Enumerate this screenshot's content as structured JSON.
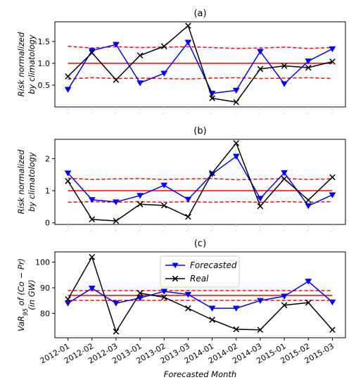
{
  "chart_data": [
    {
      "type": "line",
      "title": "(a)",
      "ylabel": "Risk normalized\nby climatology",
      "xlabel": "",
      "ylim": [
        0,
        1.95
      ],
      "yticks": [
        0.5,
        1.0,
        1.5
      ],
      "ytick_labels": [
        "0.5",
        "1.0",
        "1.5"
      ],
      "show_xtick_labels": false,
      "grid": false,
      "categories": [
        "2012-01",
        "2012-02",
        "2012-03",
        "2013-01",
        "2013-02",
        "2013-03",
        "2014-01",
        "2014-02",
        "2014-03",
        "2015-01",
        "2015-02",
        "2015-03"
      ],
      "series": [
        {
          "role": "forecasted",
          "color": "#0000ff",
          "marker": "triangle-down",
          "values": [
            0.4,
            1.29,
            1.43,
            0.55,
            0.77,
            1.48,
            0.31,
            0.38,
            1.27,
            0.53,
            1.05,
            1.33
          ]
        },
        {
          "role": "real",
          "color": "#000000",
          "marker": "x",
          "values": [
            0.7,
            1.24,
            0.62,
            1.18,
            1.39,
            1.86,
            0.2,
            0.11,
            0.87,
            0.94,
            0.9,
            1.04
          ]
        }
      ],
      "reference_lines": [
        {
          "style": "solid",
          "color": "#ff0000",
          "values": [
            1.0,
            1.0,
            1.0,
            1.0,
            1.0,
            1.0,
            1.0,
            1.0,
            1.0,
            1.0,
            1.0,
            1.0
          ]
        },
        {
          "style": "dashed",
          "color": "#ff0000",
          "values": [
            1.39,
            1.35,
            1.38,
            1.36,
            1.37,
            1.38,
            1.36,
            1.34,
            1.35,
            1.37,
            1.34,
            1.36
          ]
        },
        {
          "style": "dashed",
          "color": "#ff0000",
          "values": [
            0.64,
            0.67,
            0.65,
            0.66,
            0.65,
            0.64,
            0.66,
            0.67,
            0.65,
            0.66,
            0.67,
            0.65
          ]
        }
      ]
    },
    {
      "type": "line",
      "title": "(b)",
      "ylabel": "Risk normalized\nby climatology",
      "xlabel": "",
      "ylim": [
        -0.05,
        2.6
      ],
      "yticks": [
        0,
        1,
        2
      ],
      "ytick_labels": [
        "0",
        "1",
        "2"
      ],
      "show_xtick_labels": false,
      "grid": false,
      "categories": [
        "2012-01",
        "2012-02",
        "2012-03",
        "2013-01",
        "2013-02",
        "2013-03",
        "2014-01",
        "2014-02",
        "2014-03",
        "2015-01",
        "2015-02",
        "2015-03"
      ],
      "series": [
        {
          "role": "forecasted",
          "color": "#0000ff",
          "marker": "triangle-down",
          "values": [
            1.55,
            0.72,
            0.65,
            0.85,
            1.17,
            0.73,
            1.52,
            2.07,
            0.76,
            1.56,
            0.53,
            0.87
          ]
        },
        {
          "role": "real",
          "color": "#000000",
          "marker": "x",
          "values": [
            1.3,
            0.11,
            0.06,
            0.58,
            0.54,
            0.19,
            1.55,
            2.48,
            0.52,
            1.37,
            0.71,
            1.42
          ]
        }
      ],
      "reference_lines": [
        {
          "style": "solid",
          "color": "#ff0000",
          "values": [
            1.0,
            1.0,
            1.0,
            1.0,
            1.0,
            1.0,
            1.0,
            1.0,
            1.0,
            1.0,
            1.0,
            1.0
          ]
        },
        {
          "style": "dashed",
          "color": "#ff0000",
          "values": [
            1.39,
            1.35,
            1.37,
            1.38,
            1.35,
            1.37,
            1.38,
            1.34,
            1.36,
            1.38,
            1.35,
            1.37
          ]
        },
        {
          "style": "dashed",
          "color": "#ff0000",
          "values": [
            0.64,
            0.66,
            0.64,
            0.66,
            0.64,
            0.66,
            0.64,
            0.66,
            0.64,
            0.66,
            0.64,
            0.66
          ]
        }
      ]
    },
    {
      "type": "line",
      "title": "(c)",
      "ylabel_lines": [
        "VaR95 of (Co − Pr)",
        "(in GW)"
      ],
      "xlabel": "Forecasted Month",
      "ylim": [
        70.5,
        104
      ],
      "yticks": [
        80,
        90,
        100
      ],
      "ytick_labels": [
        "80",
        "90",
        "100"
      ],
      "show_xtick_labels": true,
      "grid": false,
      "legend": {
        "position": "top-center",
        "entries": [
          "Forecasted",
          "Real"
        ]
      },
      "categories": [
        "2012-01",
        "2012-02",
        "2012-03",
        "2013-01",
        "2013-02",
        "2013-03",
        "2014-01",
        "2014-02",
        "2014-03",
        "2015-01",
        "2015-02",
        "2015-03"
      ],
      "series": [
        {
          "name": "Forecasted",
          "color": "#0000ff",
          "marker": "triangle-down",
          "values": [
            84.0,
            89.8,
            84.0,
            86.0,
            88.6,
            87.4,
            82.0,
            82.0,
            85.0,
            86.7,
            92.5,
            84.4
          ]
        },
        {
          "name": "Real",
          "color": "#000000",
          "marker": "x",
          "values": [
            85.5,
            102.0,
            72.9,
            87.9,
            86.3,
            82.0,
            77.5,
            73.8,
            73.6,
            83.2,
            84.2,
            73.6
          ]
        }
      ],
      "reference_lines": [
        {
          "style": "solid",
          "color": "#ff0000",
          "values": [
            87.0,
            87.0,
            87.0,
            87.0,
            87.0,
            87.0,
            87.0,
            87.0,
            87.0,
            87.0,
            87.0,
            87.0
          ]
        },
        {
          "style": "dashed",
          "color": "#ff0000",
          "values": [
            88.9,
            88.9,
            88.9,
            88.9,
            88.9,
            88.9,
            88.9,
            88.9,
            88.9,
            88.9,
            88.9,
            88.9
          ]
        },
        {
          "style": "dashed",
          "color": "#ff0000",
          "values": [
            85.1,
            85.1,
            85.1,
            85.1,
            85.1,
            85.1,
            85.1,
            85.1,
            85.1,
            85.1,
            85.1,
            85.1
          ]
        }
      ]
    }
  ]
}
